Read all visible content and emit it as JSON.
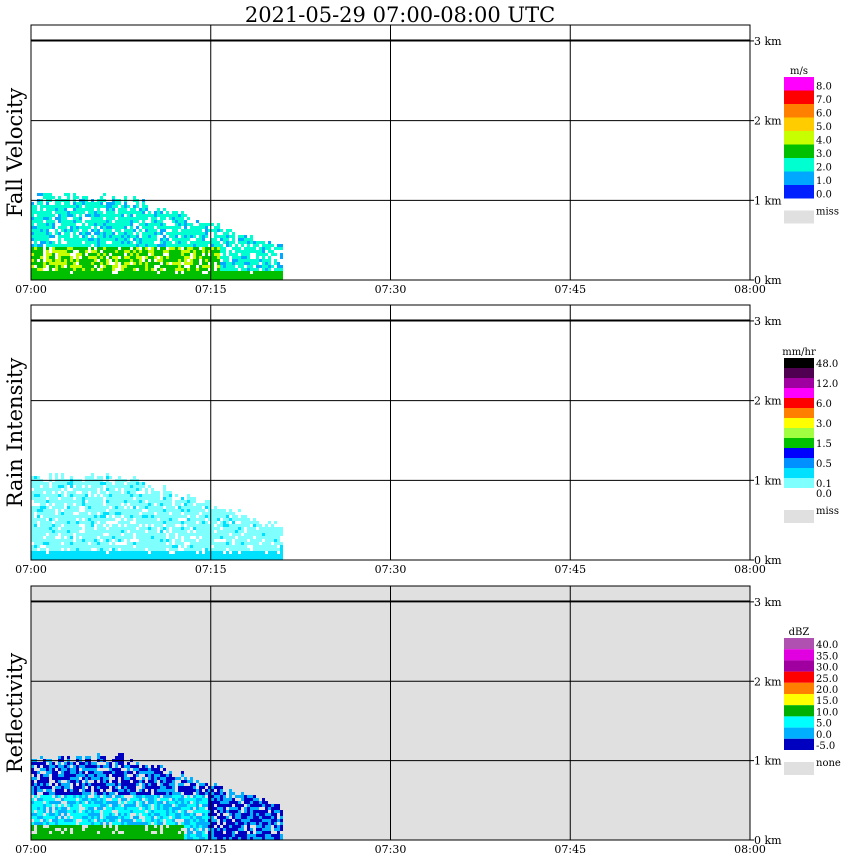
{
  "title": "2021-05-29   07:00-08:00 UTC",
  "x_ticks": [
    "07:00",
    "07:15",
    "07:30",
    "07:45",
    "08:00"
  ],
  "height_ticks": [
    "0 km",
    "1 km",
    "2 km",
    "3 km"
  ],
  "miss_label": "miss",
  "none_label": "none",
  "chart_data": [
    {
      "type": "heatmap",
      "title": "Fall Velocity",
      "x_range": [
        "07:00",
        "08:00"
      ],
      "y_range_km": [
        0,
        3.2
      ],
      "unit": "m/s",
      "colorbar": [
        {
          "label": "8.0",
          "color": "#ff00ff"
        },
        {
          "label": "7.0",
          "color": "#ff0000"
        },
        {
          "label": "6.0",
          "color": "#ff8000"
        },
        {
          "label": "5.0",
          "color": "#ffcc00"
        },
        {
          "label": "4.0",
          "color": "#c8ff00"
        },
        {
          "label": "3.0",
          "color": "#00c000"
        },
        {
          "label": "2.0",
          "color": "#00ffd0"
        },
        {
          "label": "1.0",
          "color": "#00a8ff"
        },
        {
          "label": "0.0",
          "color": "#0020ff"
        }
      ],
      "background": "#ffffff",
      "echo": {
        "start": "07:00",
        "end": "07:21",
        "max_height_km": 1.1,
        "core_height_km": 0.9
      }
    },
    {
      "type": "heatmap",
      "title": "Rain Intensity",
      "x_range": [
        "07:00",
        "08:00"
      ],
      "y_range_km": [
        0,
        3.2
      ],
      "unit": "mm/hr",
      "colorbar": [
        {
          "label": "48.0",
          "color": "#000000"
        },
        {
          "label": "",
          "color": "#500050"
        },
        {
          "label": "12.0",
          "color": "#a000a0"
        },
        {
          "label": "",
          "color": "#ff00ff"
        },
        {
          "label": "6.0",
          "color": "#ff0000"
        },
        {
          "label": "",
          "color": "#ff8000"
        },
        {
          "label": "3.0",
          "color": "#ffff00"
        },
        {
          "label": "",
          "color": "#a0ff40"
        },
        {
          "label": "1.5",
          "color": "#00c000"
        },
        {
          "label": "",
          "color": "#0000ff"
        },
        {
          "label": "0.5",
          "color": "#0090ff"
        },
        {
          "label": "",
          "color": "#00e0ff"
        },
        {
          "label": "0.1",
          "color": "#80ffff"
        },
        {
          "label": "0.0",
          "color": "#ffffff"
        }
      ],
      "background": "#ffffff",
      "echo": {
        "start": "07:00",
        "end": "07:21",
        "max_height_km": 1.1,
        "core_height_km": 0.9
      }
    },
    {
      "type": "heatmap",
      "title": "Reflectivity",
      "x_range": [
        "07:00",
        "08:00"
      ],
      "y_range_km": [
        0,
        3.2
      ],
      "unit": "dBZ",
      "colorbar": [
        {
          "label": "40.0",
          "color": "#b050b0"
        },
        {
          "label": "35.0",
          "color": "#e000e0"
        },
        {
          "label": "30.0",
          "color": "#a000a0"
        },
        {
          "label": "25.0",
          "color": "#ff0000"
        },
        {
          "label": "20.0",
          "color": "#ff8000"
        },
        {
          "label": "15.0",
          "color": "#ffff00"
        },
        {
          "label": "10.0",
          "color": "#00b000"
        },
        {
          "label": "5.0",
          "color": "#00ffff"
        },
        {
          "label": "0.0",
          "color": "#00b0ff"
        },
        {
          "label": "-5.0",
          "color": "#0000c0"
        }
      ],
      "background": "#e0e0e0",
      "echo": {
        "start": "07:00",
        "end": "07:21",
        "max_height_km": 1.1,
        "core_height_km": 0.9
      }
    }
  ]
}
